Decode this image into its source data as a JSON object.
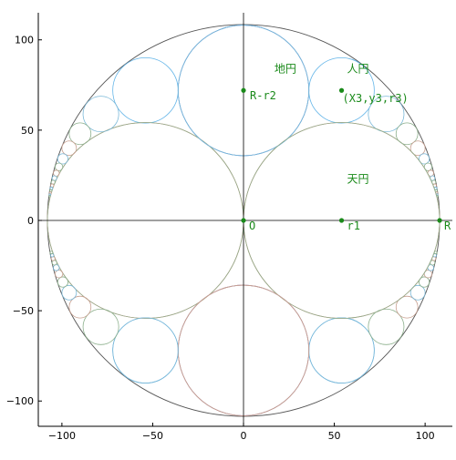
{
  "colors": {
    "outer_circle": "#555555",
    "tian_circles": "#e8736a",
    "di_circles": "#5b5bdc",
    "ren_circles": "#64b5e8",
    "chain_circles_a": "#c8a090",
    "chain_circles_b": "#8db08d",
    "chain_circles_c": "#7ab8d8",
    "axis_line": "#000000",
    "annotation": "#1a8a1a"
  },
  "chart_data": {
    "type": "diagram",
    "xlim": [
      -113,
      115
    ],
    "ylim": [
      -114,
      115
    ],
    "x_ticks": [
      -100,
      -50,
      0,
      50,
      100
    ],
    "y_ticks": [
      -100,
      -50,
      0,
      50,
      100
    ],
    "x_tick_labels": [
      "−100",
      "−50",
      "0",
      "50",
      "100"
    ],
    "y_tick_labels": [
      "−100",
      "−50",
      "0",
      "50",
      "100"
    ],
    "outer_circle": {
      "cx": 0,
      "cy": 0,
      "r": 108
    },
    "tian_circles": [
      {
        "cx": 54,
        "cy": 0,
        "r": 54
      },
      {
        "cx": -54,
        "cy": 0,
        "r": 54
      }
    ],
    "di_circles": [
      {
        "cx": 0,
        "cy": 72,
        "r": 36
      },
      {
        "cx": 0,
        "cy": -72,
        "r": 36
      }
    ],
    "ren_circles": [
      {
        "cx": 54,
        "cy": 72,
        "r": 18
      },
      {
        "cx": -54,
        "cy": 72,
        "r": 18
      },
      {
        "cx": 54,
        "cy": -72,
        "r": 18
      },
      {
        "cx": -54,
        "cy": -72,
        "r": 18
      }
    ],
    "points": [
      {
        "name": "O",
        "x": 0,
        "y": 0,
        "label": "O"
      },
      {
        "name": "r1",
        "x": 54,
        "y": 0,
        "label": "r1"
      },
      {
        "name": "R",
        "x": 108,
        "y": 0,
        "label": "R"
      },
      {
        "name": "R-r2",
        "x": 0,
        "y": 72,
        "label": "R-r2"
      },
      {
        "name": "X3y3r3",
        "x": 54,
        "y": 72,
        "label": "(X3,y3,r3)"
      }
    ],
    "text_labels": [
      {
        "text": "地円",
        "x": 17,
        "y": 82
      },
      {
        "text": "人円",
        "x": 57,
        "y": 82
      },
      {
        "text": "天円",
        "x": 57,
        "y": 21
      }
    ]
  }
}
